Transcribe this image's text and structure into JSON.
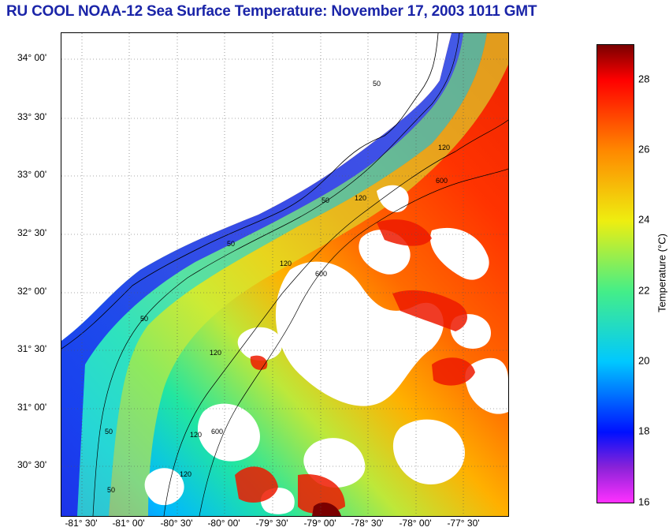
{
  "title": "RU COOL  NOAA-12  Sea Surface Temperature:  November 17, 2003 1011 GMT",
  "latitude_labels": [
    "34° 00'",
    "33° 30'",
    "33° 00'",
    "32° 30'",
    "32° 00'",
    "31° 30'",
    "31° 00'",
    "30° 30'"
  ],
  "longitude_labels": [
    "-81° 30'",
    "-81° 00'",
    "-80° 30'",
    "-80° 00'",
    "-79° 30'",
    "-79° 00'",
    "-78° 30'",
    "-78° 00'",
    "-77° 30'"
  ],
  "contour_labels": [
    "50",
    "120",
    "600"
  ],
  "colorbar": {
    "title": "Temperature (°C)",
    "ticks": [
      "28",
      "26",
      "24",
      "22",
      "20",
      "18",
      "16"
    ],
    "range": [
      16,
      29
    ],
    "colors": {
      "16": "#ff30ff",
      "17": "#8a22d8",
      "18": "#0010ff",
      "20": "#00c8ff",
      "22": "#44ee88",
      "24": "#eeee10",
      "26": "#ff8800",
      "28": "#ff0000",
      "29": "#7a0000"
    }
  },
  "chart_data": {
    "type": "heatmap",
    "title": "RU COOL  NOAA-12  Sea Surface Temperature:  November 17, 2003 1011 GMT",
    "xlabel": "",
    "ylabel": "",
    "xlim": [
      -81.67,
      -77.17
    ],
    "ylim": [
      30.17,
      34.25
    ],
    "value_label": "Temperature (°C)",
    "value_range": [
      16,
      29
    ],
    "grid": true
  }
}
